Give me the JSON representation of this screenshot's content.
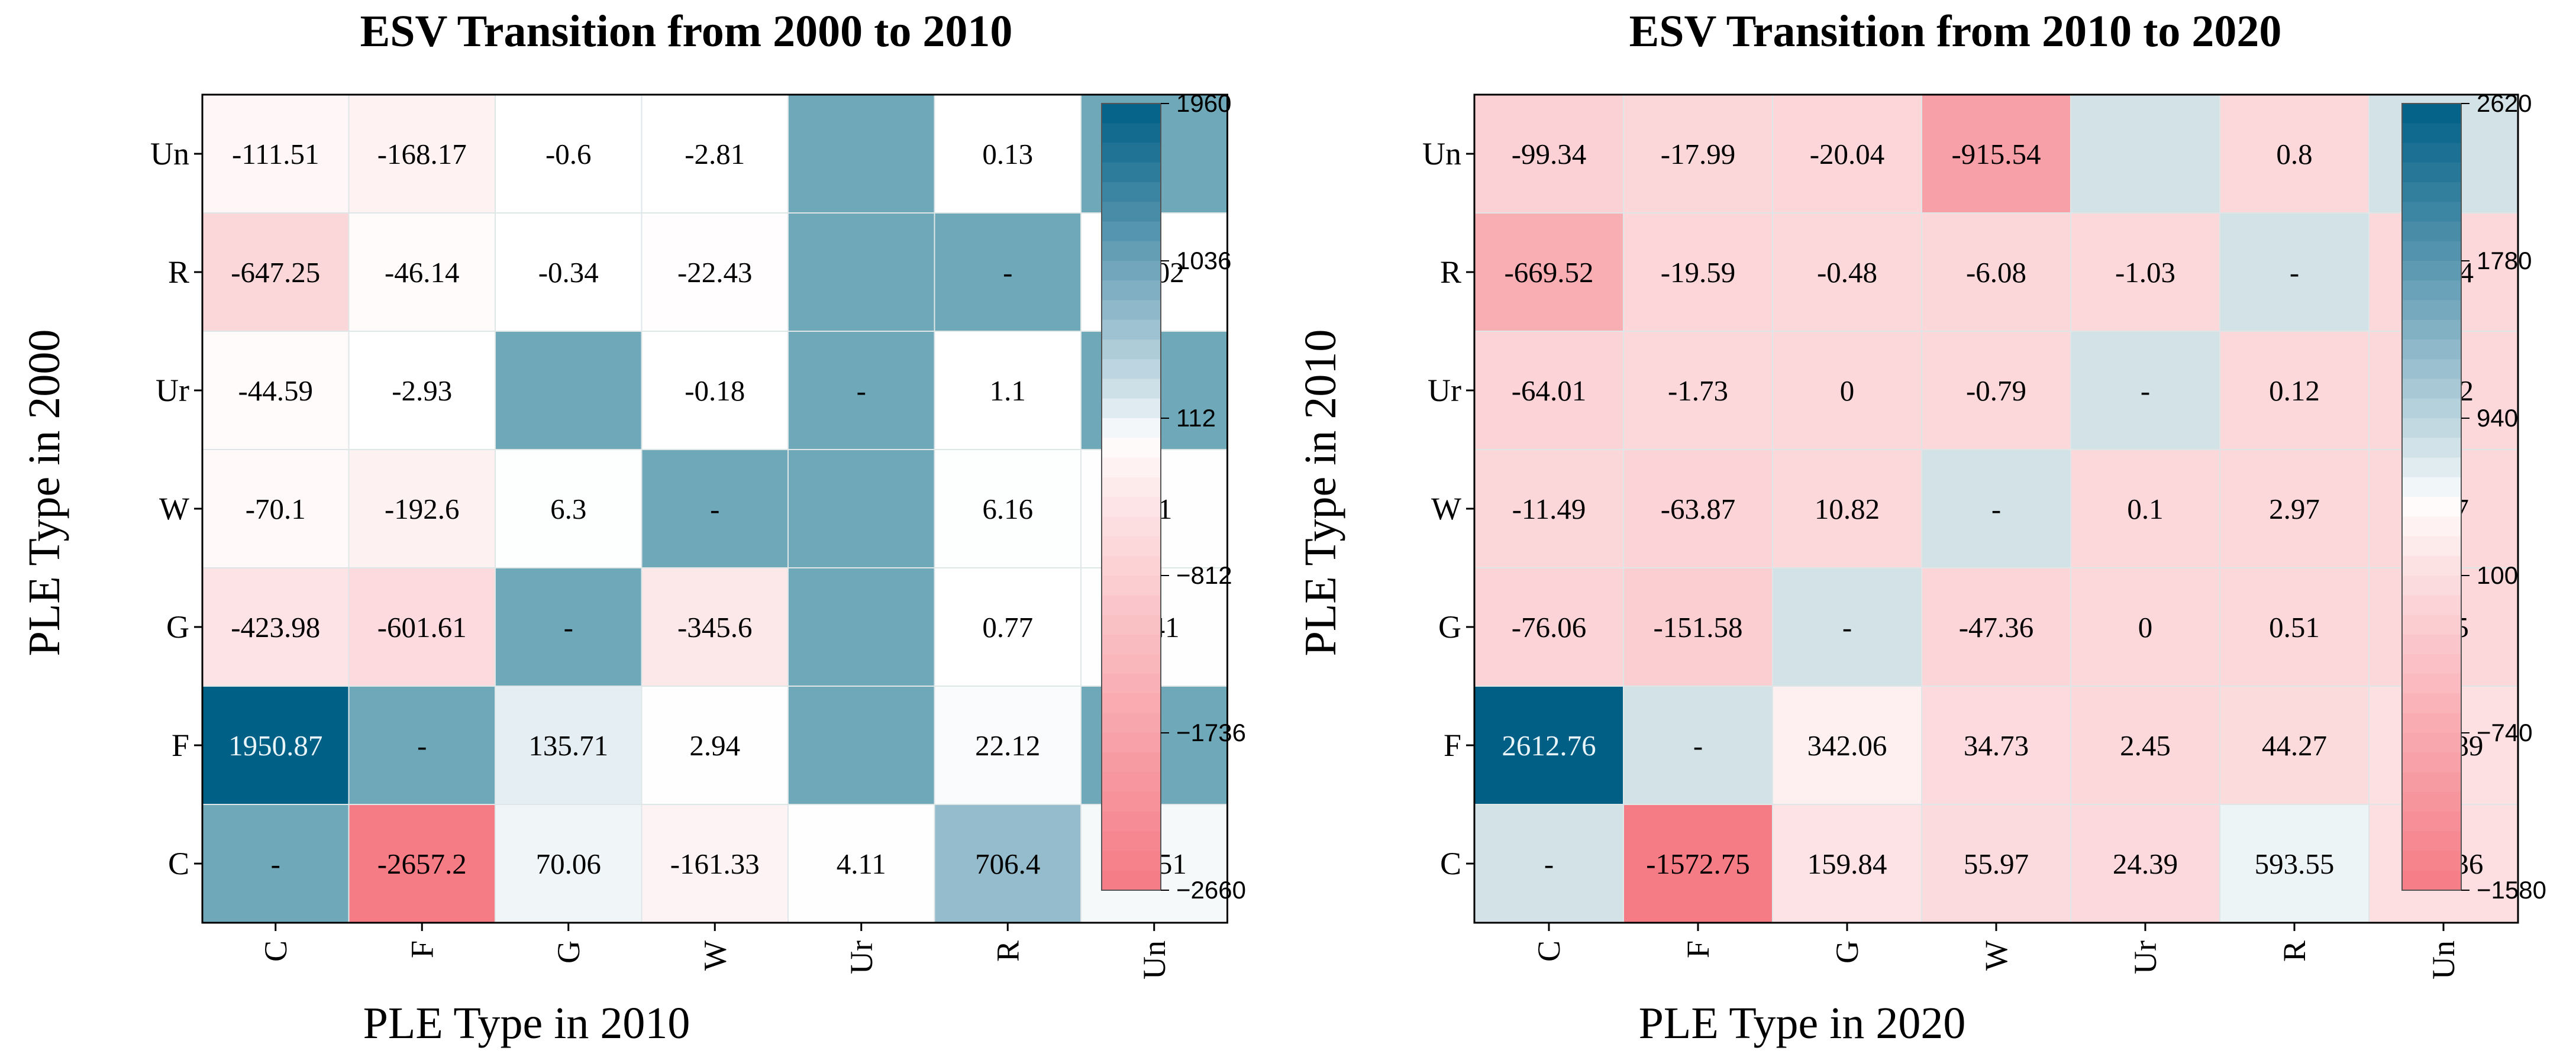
{
  "chart_data": [
    {
      "type": "heatmap",
      "title": "ESV Transition from 2000 to 2010",
      "xlabel": "PLE Type in 2010",
      "ylabel": "PLE Type in 2000",
      "x_categories": [
        "C",
        "F",
        "G",
        "W",
        "Ur",
        "R",
        "Un"
      ],
      "y_categories": [
        "Un",
        "R",
        "Ur",
        "W",
        "G",
        "F",
        "C"
      ],
      "values": [
        [
          -111.51,
          -168.17,
          -0.6,
          -2.81,
          null,
          0.13,
          null
        ],
        [
          -647.25,
          -46.14,
          -0.34,
          -22.43,
          null,
          null,
          -0.02
        ],
        [
          -44.59,
          -2.93,
          null,
          -0.18,
          null,
          1.1,
          null
        ],
        [
          -70.1,
          -192.6,
          6.3,
          null,
          null,
          6.16,
          4.1
        ],
        [
          -423.98,
          -601.61,
          null,
          -345.6,
          null,
          0.77,
          3.41
        ],
        [
          1950.87,
          null,
          135.71,
          2.94,
          null,
          22.12,
          null
        ],
        [
          null,
          -2657.2,
          70.06,
          -161.33,
          4.11,
          706.4,
          42.51
        ]
      ],
      "labels": [
        [
          "-111.51",
          "-168.17",
          "-0.6",
          "-2.81",
          "",
          "0.13",
          "-"
        ],
        [
          "-647.25",
          "-46.14",
          "-0.34",
          "-22.43",
          "",
          "-",
          "-0.02"
        ],
        [
          "-44.59",
          "-2.93",
          "",
          "-0.18",
          "-",
          "1.1",
          ""
        ],
        [
          "-70.1",
          "-192.6",
          "6.3",
          "-",
          "",
          "6.16",
          "4.1"
        ],
        [
          "-423.98",
          "-601.61",
          "-",
          "-345.6",
          "",
          "0.77",
          "3.41"
        ],
        [
          "1950.87",
          "-",
          "135.71",
          "2.94",
          "",
          "22.12",
          ""
        ],
        [
          "-",
          "-2657.2",
          "70.06",
          "-161.33",
          "4.11",
          "706.4",
          "42.51"
        ]
      ],
      "colorbar": {
        "min": -2660,
        "max": 1960,
        "center": 0,
        "ticks": [
          1960,
          1036,
          112,
          -812,
          -1736,
          -2660
        ],
        "tick_labels": [
          "1960",
          "1036",
          "112",
          "−812",
          "−1736",
          "−2660"
        ],
        "color_low": "#f57b85",
        "color_mid": "#ffffff",
        "color_high": "#005f86"
      },
      "missing_color": "#6fa9b9"
    },
    {
      "type": "heatmap",
      "title": "ESV Transition from 2010 to 2020",
      "xlabel": "PLE Type in 2020",
      "ylabel": "PLE Type in 2010",
      "x_categories": [
        "C",
        "F",
        "G",
        "W",
        "Ur",
        "R",
        "Un"
      ],
      "y_categories": [
        "Un",
        "R",
        "Ur",
        "W",
        "G",
        "F",
        "C"
      ],
      "values": [
        [
          -99.34,
          -17.99,
          -20.04,
          -915.54,
          null,
          0.8,
          null
        ],
        [
          -669.52,
          -19.59,
          -0.48,
          -6.08,
          -1.03,
          null,
          -0.14
        ],
        [
          -64.01,
          -1.73,
          0,
          -0.79,
          null,
          0.12,
          -0.02
        ],
        [
          -11.49,
          -63.87,
          10.82,
          null,
          0.1,
          2.97,
          2.17
        ],
        [
          -76.06,
          -151.58,
          null,
          -47.36,
          0,
          0.51,
          2.15
        ],
        [
          2612.76,
          null,
          342.06,
          34.73,
          2.45,
          44.27,
          121.89
        ],
        [
          null,
          -1572.75,
          159.84,
          55.97,
          24.39,
          593.55,
          106.36
        ]
      ],
      "labels": [
        [
          "-99.34",
          "-17.99",
          "-20.04",
          "-915.54",
          "",
          "0.8",
          "-"
        ],
        [
          "-669.52",
          "-19.59",
          "-0.48",
          "-6.08",
          "-1.03",
          "-",
          "-0.14"
        ],
        [
          "-64.01",
          "-1.73",
          "0",
          "-0.79",
          "-",
          "0.12",
          "-0.02"
        ],
        [
          "-11.49",
          "-63.87",
          "10.82",
          "-",
          "0.1",
          "2.97",
          "2.17"
        ],
        [
          "-76.06",
          "-151.58",
          "-",
          "-47.36",
          "0",
          "0.51",
          "2.15"
        ],
        [
          "2612.76",
          "-",
          "342.06",
          "34.73",
          "2.45",
          "44.27",
          "121.89"
        ],
        [
          "-",
          "-1572.75",
          "159.84",
          "55.97",
          "24.39",
          "593.55",
          "106.36"
        ]
      ],
      "colorbar": {
        "min": -1580,
        "max": 2620,
        "center": 500,
        "ticks": [
          2620,
          1780,
          940,
          100,
          -740,
          -1580
        ],
        "tick_labels": [
          "2620",
          "1780",
          "940",
          "100",
          "−740",
          "−1580"
        ],
        "color_low": "#f57b85",
        "color_mid": "#ffffff",
        "color_high": "#005f86"
      },
      "missing_color": "#d3e2e6"
    }
  ]
}
